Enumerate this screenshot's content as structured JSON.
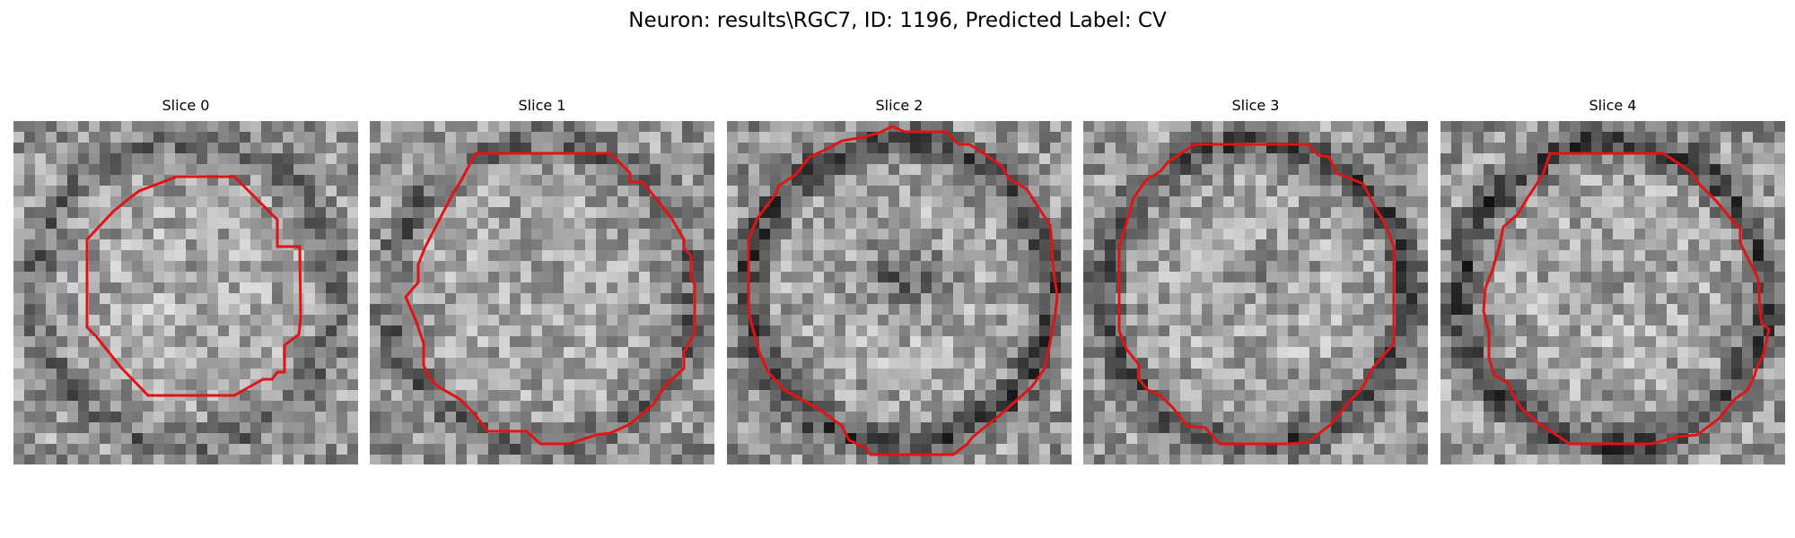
{
  "figure": {
    "title": "Neuron: results\\RGC7, ID: 1196, Predicted Label: CV",
    "contour_color": "#e01414",
    "slices": [
      {
        "title": "Slice 0"
      },
      {
        "title": "Slice 1"
      },
      {
        "title": "Slice 2"
      },
      {
        "title": "Slice 3"
      },
      {
        "title": "Slice 4"
      }
    ]
  }
}
